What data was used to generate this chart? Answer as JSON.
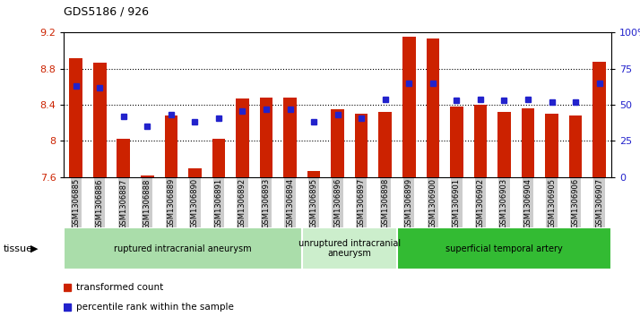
{
  "title": "GDS5186 / 926",
  "samples": [
    "GSM1306885",
    "GSM1306886",
    "GSM1306887",
    "GSM1306888",
    "GSM1306889",
    "GSM1306890",
    "GSM1306891",
    "GSM1306892",
    "GSM1306893",
    "GSM1306894",
    "GSM1306895",
    "GSM1306896",
    "GSM1306897",
    "GSM1306898",
    "GSM1306899",
    "GSM1306900",
    "GSM1306901",
    "GSM1306902",
    "GSM1306903",
    "GSM1306904",
    "GSM1306905",
    "GSM1306906",
    "GSM1306907"
  ],
  "bar_values": [
    8.92,
    8.87,
    8.02,
    7.62,
    8.28,
    7.7,
    8.02,
    8.47,
    8.48,
    8.48,
    7.67,
    8.35,
    8.3,
    8.32,
    9.15,
    9.13,
    8.38,
    8.4,
    8.32,
    8.36,
    8.3,
    8.28,
    8.88
  ],
  "percentile_values": [
    63,
    62,
    42,
    35,
    43,
    38,
    41,
    46,
    47,
    47,
    38,
    43,
    41,
    54,
    65,
    65,
    53,
    54,
    53,
    54,
    52,
    52,
    65
  ],
  "ymin": 7.6,
  "ymax": 9.2,
  "pct_min": 0,
  "pct_max": 100,
  "bar_color": "#cc2200",
  "dot_color": "#2222cc",
  "bg_color": "#ffffff",
  "xticklabel_bg": "#cccccc",
  "yticks_left": [
    7.6,
    8.0,
    8.4,
    8.8,
    9.2
  ],
  "ytick_labels_left": [
    "7.6",
    "8",
    "8.4",
    "8.8",
    "9.2"
  ],
  "yticks_right": [
    0,
    25,
    50,
    75,
    100
  ],
  "ytick_labels_right": [
    "0",
    "25",
    "50",
    "75",
    "100%"
  ],
  "grid_lines": [
    8.0,
    8.4,
    8.8
  ],
  "tissue_groups": [
    {
      "label": "ruptured intracranial aneurysm",
      "start": 0,
      "end": 10,
      "color": "#aaddaa"
    },
    {
      "label": "unruptured intracranial\naneurysm",
      "start": 10,
      "end": 14,
      "color": "#cceecc"
    },
    {
      "label": "superficial temporal artery",
      "start": 14,
      "end": 23,
      "color": "#33bb33"
    }
  ],
  "legend": [
    {
      "label": "transformed count",
      "color": "#cc2200"
    },
    {
      "label": "percentile rank within the sample",
      "color": "#2222cc"
    }
  ],
  "tissue_text": "tissue"
}
